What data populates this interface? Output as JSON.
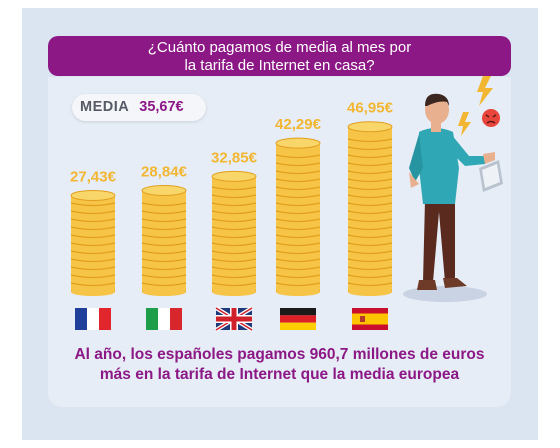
{
  "title_lines": [
    "¿Cuánto pagamos de media al mes por",
    "la tarifa de Internet en casa?"
  ],
  "media": {
    "label": "MEDIA",
    "value": "35,67€"
  },
  "footer_lines": [
    "Al año, los españoles pagamos 960,7 millones de euros",
    "más en la tarifa de Internet que la media europea"
  ],
  "colors": {
    "purple": "#8c1886",
    "gold": "#f2b632",
    "coin": "#f6c548",
    "coin_dark": "#e29e1e"
  },
  "chart_data": {
    "type": "bar",
    "categories": [
      "France",
      "Italy",
      "United Kingdom",
      "Germany",
      "Spain"
    ],
    "values": [
      27.43,
      28.84,
      32.85,
      42.29,
      46.95
    ],
    "value_labels": [
      "27,43€",
      "28,84€",
      "32,85€",
      "42,29€",
      "46,95€"
    ],
    "category_display": "flag-icons",
    "average": 35.67,
    "title": "¿Cuánto pagamos de media al mes por la tarifa de Internet en casa?",
    "xlabel": "",
    "ylabel": "",
    "grid": false
  }
}
